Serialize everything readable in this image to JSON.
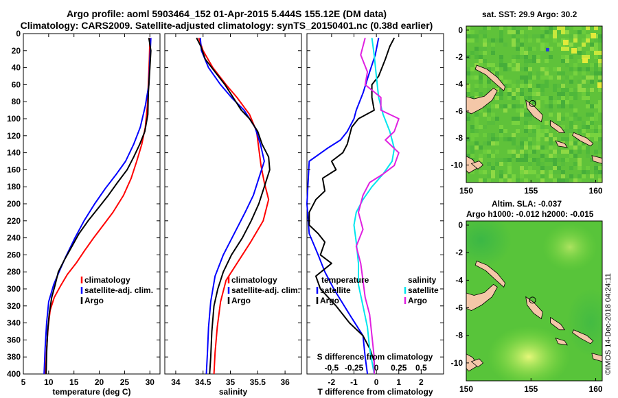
{
  "titles": {
    "line1": "Argo profile: aoml 5903464_152 01-Apr-2015 5.444S 155.12E (DM data)",
    "line2": "Climatology: CARS2009. Satellite-adjusted climatology: synTS_20150401.nc (0.38d earlier)"
  },
  "maps": {
    "sst_title": "sat. SST: 29.9 Argo: 30.2",
    "sla_title": "Altim. SLA: -0.037",
    "sla_subtitle": "Argo h1000: -0.012 h2000: -0.015"
  },
  "credit": "©IMOS 14-Dec-2018 04:24:11",
  "colors": {
    "climatology": "#ff0000",
    "satellite": "#0000ff",
    "argo": "#000000",
    "s_satellite": "#00e5ee",
    "s_argo": "#e020e0"
  },
  "chart_data": [
    {
      "type": "line",
      "id": "temperature",
      "xlabel": "temperature (deg C)",
      "ylabel": "",
      "xlim": [
        5,
        32
      ],
      "ylim": [
        400,
        0
      ],
      "xticks": [
        5,
        10,
        15,
        20,
        25,
        30
      ],
      "yticks": [
        0,
        20,
        40,
        60,
        80,
        100,
        120,
        140,
        160,
        180,
        200,
        220,
        240,
        260,
        280,
        300,
        320,
        340,
        360,
        380,
        400
      ],
      "legend": [
        "climatology",
        "satellite-adj. clim.",
        "Argo"
      ],
      "legend_position": "lower-right",
      "series": [
        {
          "name": "climatology",
          "color_key": "climatology",
          "points": [
            [
              30.0,
              5
            ],
            [
              29.9,
              30
            ],
            [
              29.7,
              60
            ],
            [
              29.5,
              85
            ],
            [
              29.1,
              110
            ],
            [
              28.4,
              130
            ],
            [
              27.4,
              150
            ],
            [
              26.3,
              170
            ],
            [
              24.8,
              190
            ],
            [
              22.7,
              210
            ],
            [
              20.8,
              225
            ],
            [
              18.9,
              240
            ],
            [
              17.1,
              255
            ],
            [
              15.4,
              270
            ],
            [
              13.7,
              283
            ],
            [
              12.3,
              297
            ],
            [
              11.1,
              310
            ],
            [
              10.3,
              325
            ],
            [
              9.9,
              345
            ],
            [
              9.6,
              370
            ],
            [
              9.4,
              400
            ]
          ]
        },
        {
          "name": "satellite-adj. clim.",
          "color_key": "satellite",
          "points": [
            [
              30.2,
              5
            ],
            [
              30.0,
              30
            ],
            [
              29.8,
              60
            ],
            [
              29.1,
              85
            ],
            [
              28.1,
              110
            ],
            [
              26.8,
              130
            ],
            [
              25.2,
              150
            ],
            [
              23.4,
              165
            ],
            [
              21.2,
              182
            ],
            [
              19.1,
              200
            ],
            [
              17.0,
              220
            ],
            [
              15.2,
              240
            ],
            [
              13.4,
              262
            ],
            [
              12.2,
              278
            ],
            [
              11.0,
              295
            ],
            [
              10.0,
              315
            ],
            [
              9.6,
              340
            ],
            [
              9.3,
              370
            ],
            [
              9.1,
              400
            ]
          ]
        },
        {
          "name": "Argo",
          "color_key": "argo",
          "points": [
            [
              29.8,
              5
            ],
            [
              30.2,
              20
            ],
            [
              30.0,
              40
            ],
            [
              29.7,
              70
            ],
            [
              29.6,
              95
            ],
            [
              29.0,
              115
            ],
            [
              28.0,
              130
            ],
            [
              26.8,
              145
            ],
            [
              25.5,
              160
            ],
            [
              23.6,
              175
            ],
            [
              21.8,
              190
            ],
            [
              19.8,
              205
            ],
            [
              17.8,
              220
            ],
            [
              16.0,
              235
            ],
            [
              14.6,
              250
            ],
            [
              13.2,
              265
            ],
            [
              11.9,
              280
            ],
            [
              11.3,
              295
            ],
            [
              10.6,
              310
            ],
            [
              10.1,
              330
            ],
            [
              9.8,
              350
            ],
            [
              9.6,
              375
            ],
            [
              9.5,
              400
            ]
          ]
        }
      ]
    },
    {
      "type": "line",
      "id": "salinity",
      "xlabel": "salinity",
      "ylabel": "",
      "xlim": [
        33.8,
        36.3
      ],
      "ylim": [
        400,
        0
      ],
      "xticks": [
        34,
        34.5,
        35,
        35.5,
        36
      ],
      "legend": [
        "climatology",
        "satellite-adj. clim.",
        "Argo"
      ],
      "legend_position": "lower-right",
      "series": [
        {
          "name": "climatology",
          "color_key": "climatology",
          "points": [
            [
              34.42,
              5
            ],
            [
              34.5,
              20
            ],
            [
              34.68,
              40
            ],
            [
              34.92,
              60
            ],
            [
              35.12,
              75
            ],
            [
              35.35,
              95
            ],
            [
              35.48,
              115
            ],
            [
              35.52,
              135
            ],
            [
              35.56,
              155
            ],
            [
              35.62,
              175
            ],
            [
              35.7,
              195
            ],
            [
              35.6,
              220
            ],
            [
              35.37,
              245
            ],
            [
              35.12,
              270
            ],
            [
              34.92,
              290
            ],
            [
              34.82,
              315
            ],
            [
              34.76,
              345
            ],
            [
              34.72,
              375
            ],
            [
              34.7,
              400
            ]
          ]
        },
        {
          "name": "satellite-adj. clim.",
          "color_key": "satellite",
          "points": [
            [
              34.45,
              5
            ],
            [
              34.47,
              20
            ],
            [
              34.6,
              40
            ],
            [
              34.82,
              60
            ],
            [
              35.02,
              75
            ],
            [
              35.25,
              90
            ],
            [
              35.45,
              110
            ],
            [
              35.55,
              130
            ],
            [
              35.62,
              150
            ],
            [
              35.52,
              170
            ],
            [
              35.42,
              190
            ],
            [
              35.27,
              210
            ],
            [
              35.07,
              235
            ],
            [
              34.87,
              260
            ],
            [
              34.72,
              285
            ],
            [
              34.64,
              315
            ],
            [
              34.6,
              345
            ],
            [
              34.58,
              375
            ],
            [
              34.56,
              400
            ]
          ]
        },
        {
          "name": "Argo",
          "color_key": "argo",
          "points": [
            [
              34.38,
              5
            ],
            [
              34.46,
              15
            ],
            [
              34.54,
              30
            ],
            [
              34.72,
              45
            ],
            [
              34.9,
              60
            ],
            [
              35.05,
              75
            ],
            [
              35.2,
              90
            ],
            [
              35.35,
              100
            ],
            [
              35.5,
              115
            ],
            [
              35.58,
              130
            ],
            [
              35.7,
              145
            ],
            [
              35.72,
              160
            ],
            [
              35.62,
              180
            ],
            [
              35.52,
              200
            ],
            [
              35.38,
              220
            ],
            [
              35.22,
              240
            ],
            [
              35.02,
              260
            ],
            [
              34.87,
              280
            ],
            [
              34.77,
              300
            ],
            [
              34.7,
              320
            ],
            [
              34.66,
              350
            ],
            [
              34.64,
              380
            ],
            [
              34.62,
              400
            ]
          ]
        }
      ]
    },
    {
      "type": "line",
      "id": "difference",
      "xlabel": "T difference from climatology",
      "secondary_xlabel": "S difference from climatology",
      "xlim": [
        -3.1,
        3.0
      ],
      "ylim": [
        400,
        0
      ],
      "xticks": [
        -2,
        -1,
        0,
        1,
        2
      ],
      "secondary_xticks_labels": [
        "-0.5",
        "-0.25",
        "0",
        "0.25",
        "0.5"
      ],
      "secondary_xticks_values": [
        -2,
        -1,
        0,
        1,
        2
      ],
      "legend_left_header": "temperature",
      "legend_right_header": "salinity",
      "legend": [
        "satellite",
        "Argo"
      ],
      "legend_position": "lower",
      "series": [
        {
          "name": "T satellite",
          "color_key": "satellite",
          "points": [
            [
              0.1,
              5
            ],
            [
              -0.05,
              25
            ],
            [
              -0.3,
              45
            ],
            [
              -0.6,
              70
            ],
            [
              -0.9,
              90
            ],
            [
              -1.0,
              100
            ],
            [
              -1.3,
              115
            ],
            [
              -1.6,
              125
            ],
            [
              -2.2,
              135
            ],
            [
              -3.0,
              150
            ],
            [
              -3.1,
              200
            ],
            [
              -3.0,
              235
            ],
            [
              -2.6,
              260
            ],
            [
              -2.3,
              280
            ],
            [
              -1.9,
              300
            ],
            [
              -1.2,
              330
            ],
            [
              -0.6,
              355
            ],
            [
              -0.5,
              380
            ],
            [
              -0.4,
              400
            ]
          ]
        },
        {
          "name": "T Argo",
          "color_key": "argo",
          "points": [
            [
              0.8,
              5
            ],
            [
              0.6,
              15
            ],
            [
              0.4,
              30
            ],
            [
              0.1,
              50
            ],
            [
              -0.2,
              60
            ],
            [
              -0.2,
              75
            ],
            [
              -0.1,
              90
            ],
            [
              -0.8,
              100
            ],
            [
              -1.1,
              110
            ],
            [
              -1.3,
              130
            ],
            [
              -1.5,
              140
            ],
            [
              -2.0,
              150
            ],
            [
              -1.8,
              160
            ],
            [
              -2.4,
              170
            ],
            [
              -2.3,
              185
            ],
            [
              -2.7,
              195
            ],
            [
              -3.0,
              210
            ],
            [
              -3.0,
              225
            ],
            [
              -2.6,
              235
            ],
            [
              -2.3,
              245
            ],
            [
              -2.5,
              260
            ],
            [
              -2.0,
              270
            ],
            [
              -2.7,
              285
            ],
            [
              -2.5,
              300
            ],
            [
              -1.8,
              320
            ],
            [
              -1.2,
              340
            ],
            [
              -0.6,
              355
            ],
            [
              -0.3,
              370
            ],
            [
              -0.1,
              385
            ],
            [
              -0.1,
              400
            ]
          ]
        },
        {
          "name": "S satellite",
          "color_key": "s_satellite",
          "points": [
            [
              -0.2,
              5
            ],
            [
              -0.1,
              25
            ],
            [
              0.0,
              50
            ],
            [
              0.1,
              75
            ],
            [
              0.3,
              95
            ],
            [
              0.6,
              115
            ],
            [
              0.8,
              135
            ],
            [
              0.7,
              150
            ],
            [
              0.3,
              165
            ],
            [
              -0.2,
              180
            ],
            [
              -0.6,
              195
            ],
            [
              -0.9,
              210
            ],
            [
              -1.0,
              225
            ],
            [
              -0.9,
              245
            ],
            [
              -0.8,
              270
            ],
            [
              -0.8,
              295
            ],
            [
              -0.6,
              320
            ],
            [
              -0.4,
              345
            ],
            [
              -0.3,
              370
            ],
            [
              -0.1,
              400
            ]
          ]
        },
        {
          "name": "S Argo",
          "color_key": "s_argo",
          "points": [
            [
              -0.5,
              5
            ],
            [
              -0.7,
              25
            ],
            [
              -0.4,
              45
            ],
            [
              -0.5,
              60
            ],
            [
              0.2,
              75
            ],
            [
              0.2,
              90
            ],
            [
              1.0,
              100
            ],
            [
              0.8,
              115
            ],
            [
              0.4,
              125
            ],
            [
              1.0,
              140
            ],
            [
              0.8,
              155
            ],
            [
              0.3,
              165
            ],
            [
              -0.3,
              175
            ],
            [
              -0.6,
              190
            ],
            [
              -0.8,
              210
            ],
            [
              -0.6,
              230
            ],
            [
              -0.9,
              250
            ],
            [
              -0.7,
              270
            ],
            [
              -0.6,
              290
            ],
            [
              -0.5,
              310
            ],
            [
              -0.3,
              330
            ],
            [
              -0.2,
              355
            ],
            [
              -0.1,
              380
            ],
            [
              -0.1,
              400
            ]
          ]
        }
      ]
    },
    {
      "type": "heatmap",
      "id": "sst_map",
      "title": "sat. SST: 29.9 Argo: 30.2",
      "xlim": [
        150,
        160.5
      ],
      "ylim": [
        -11.3,
        0.3
      ],
      "xticks": [
        150,
        155,
        160
      ],
      "yticks": [
        0,
        -2,
        -4,
        -6,
        -8,
        -10
      ],
      "argo_position": [
        155.12,
        -5.444
      ]
    },
    {
      "type": "heatmap",
      "id": "sla_map",
      "title": "Altim. SLA: -0.037",
      "xlim": [
        150,
        160.5
      ],
      "ylim": [
        -11.3,
        0.3
      ],
      "xticks": [
        150,
        155,
        160
      ],
      "yticks": [
        0,
        -2,
        -4,
        -6,
        -8,
        -10
      ],
      "argo_position": [
        155.12,
        -5.444
      ]
    }
  ]
}
